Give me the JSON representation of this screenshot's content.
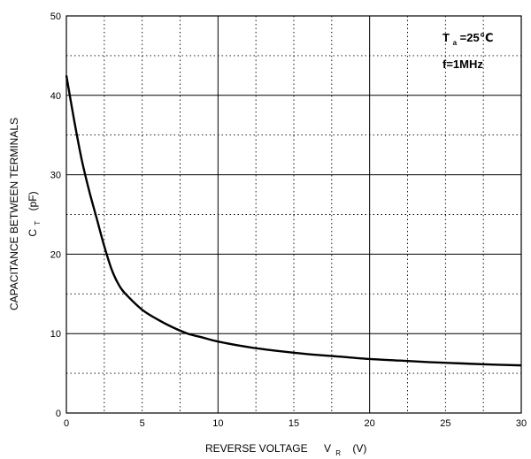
{
  "chart_data": {
    "type": "line",
    "x_tick_labels": [
      "0",
      "5",
      "10",
      "15",
      "20",
      "25",
      "30"
    ],
    "y_tick_labels": [
      "0",
      "10",
      "20",
      "30",
      "40",
      "50"
    ],
    "xlim": [
      0,
      30
    ],
    "ylim": [
      0,
      50
    ],
    "xlabel": {
      "text": "REVERSE VOLTAGE",
      "symbol": "V",
      "subscript": "R",
      "unit": "(V)"
    },
    "ylabel": {
      "text": "CAPACITANCE BETWEEN TERMINALS",
      "symbol": "C",
      "subscript": "T",
      "unit": "(pF)"
    },
    "grid": {
      "major_solid_every": 10,
      "minor_dotted": true
    },
    "annotations": {
      "temperature": {
        "symbol": "T",
        "subscript": "a",
        "value": "=25℃"
      },
      "frequency": "f=1MHz"
    },
    "series": [
      {
        "x": [
          0,
          0.5,
          1,
          1.5,
          2,
          2.5,
          3,
          3.5,
          4,
          5,
          6,
          7,
          8,
          9,
          10,
          12,
          14,
          16,
          18,
          20,
          22,
          24,
          26,
          28,
          30
        ],
        "y": [
          42.5,
          37,
          32,
          28,
          24.5,
          21,
          18,
          16,
          14.8,
          13,
          11.8,
          10.8,
          10,
          9.5,
          9,
          8.3,
          7.8,
          7.4,
          7.1,
          6.8,
          6.6,
          6.4,
          6.25,
          6.1,
          6.0
        ]
      }
    ]
  }
}
